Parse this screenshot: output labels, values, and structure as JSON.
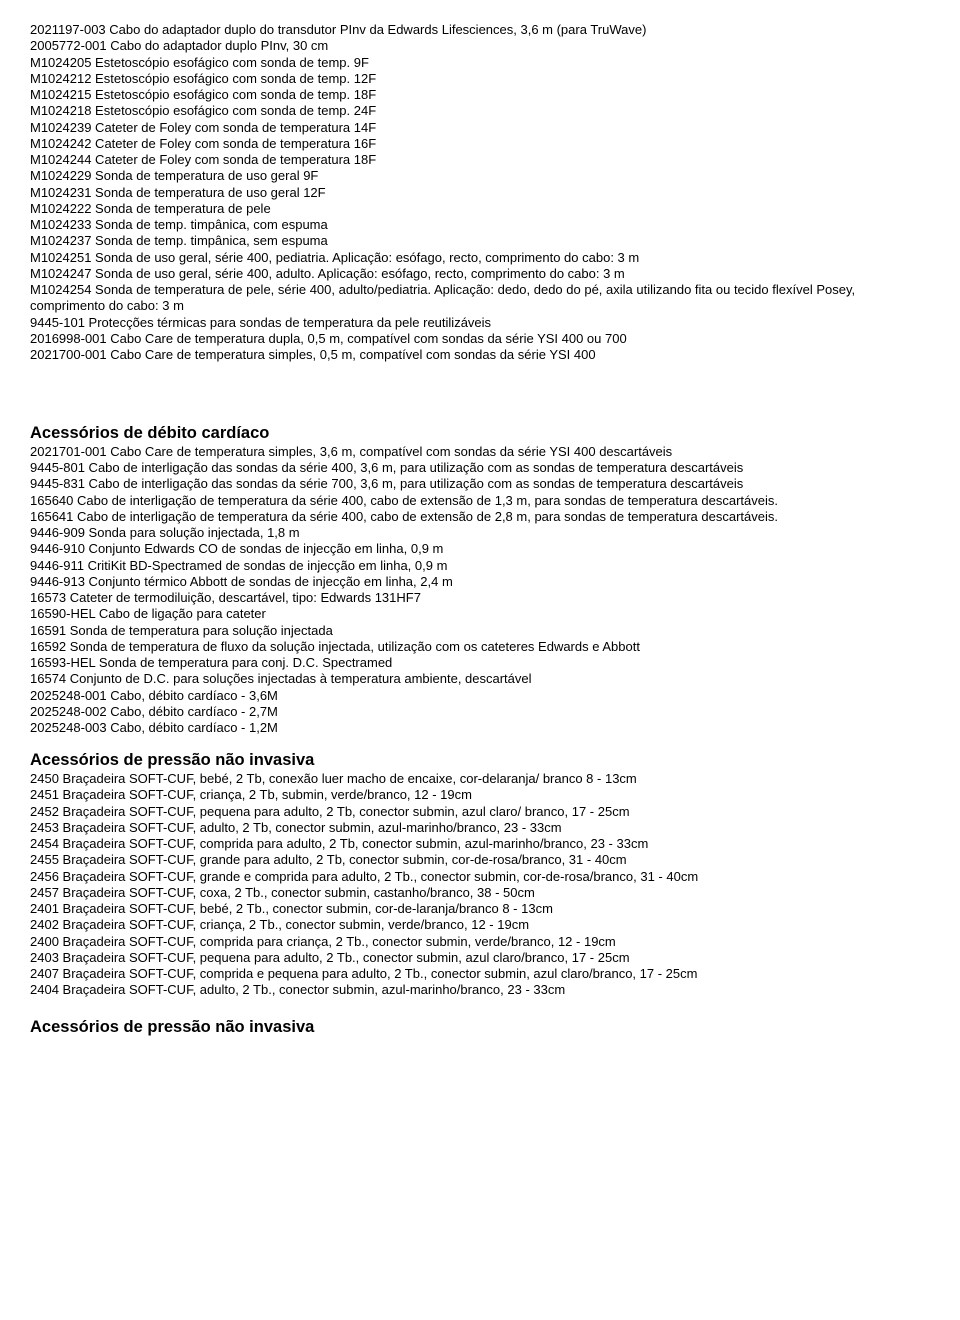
{
  "section1": {
    "lines": [
      "2021197-003 Cabo do adaptador duplo do transdutor PInv da Edwards Lifesciences, 3,6 m (para TruWave)",
      "2005772-001 Cabo do adaptador duplo PInv, 30 cm",
      "M1024205 Estetoscópio esofágico com sonda de temp. 9F",
      "M1024212 Estetoscópio esofágico com sonda de temp. 12F",
      "M1024215 Estetoscópio esofágico com sonda de temp. 18F",
      "M1024218 Estetoscópio esofágico com sonda de temp. 24F",
      "M1024239 Cateter de Foley com sonda de temperatura 14F",
      "M1024242 Cateter de Foley com sonda de temperatura 16F",
      "M1024244 Cateter de Foley com sonda de temperatura 18F",
      "M1024229 Sonda de temperatura de uso geral 9F",
      "M1024231 Sonda de temperatura de uso geral 12F",
      "M1024222 Sonda de temperatura de pele",
      "M1024233 Sonda de temp. timpânica, com espuma",
      "M1024237 Sonda de temp. timpânica, sem espuma",
      "M1024251 Sonda de uso geral, série 400, pediatria. Aplicação: esófago, recto, comprimento do cabo: 3 m",
      "M1024247 Sonda de uso geral, série 400, adulto. Aplicação: esófago, recto, comprimento do cabo: 3 m",
      "M1024254 Sonda de temperatura de pele, série 400, adulto/pediatria. Aplicação: dedo, dedo do pé, axila utilizando fita ou tecido flexível Posey, comprimento do cabo: 3 m",
      "9445-101 Protecções térmicas para sondas de temperatura da pele reutilizáveis",
      "2016998-001 Cabo Care de temperatura dupla, 0,5 m, compatível com sondas da série YSI 400 ou 700",
      "2021700-001 Cabo Care de temperatura simples, 0,5 m, compatível com sondas da série YSI 400"
    ]
  },
  "section2": {
    "heading": "Acessórios de débito cardíaco",
    "lines": [
      "2021701-001 Cabo Care de temperatura simples, 3,6 m, compatível com sondas da série YSI 400 descartáveis",
      "9445-801 Cabo de interligação das sondas da série 400, 3,6 m, para utilização com as sondas de temperatura descartáveis",
      "9445-831 Cabo de interligação das sondas da série 700, 3,6 m, para utilização com as sondas de temperatura descartáveis",
      "165640 Cabo de interligação de temperatura da série 400, cabo de extensão de 1,3 m, para sondas de temperatura descartáveis.",
      "165641 Cabo de interligação de temperatura da série 400, cabo de extensão de 2,8 m, para sondas de temperatura descartáveis.",
      "9446-909 Sonda para solução injectada, 1,8 m",
      "9446-910 Conjunto Edwards CO de sondas de injecção em linha, 0,9 m",
      "9446-911 CritiKit BD-Spectramed de sondas de injecção em linha, 0,9 m",
      "9446-913 Conjunto térmico Abbott de sondas de injecção em linha, 2,4 m",
      "16573 Cateter de termodiluição, descartável, tipo: Edwards 131HF7",
      "16590-HEL Cabo de ligação para cateter",
      "16591 Sonda de temperatura para solução injectada",
      "16592 Sonda de temperatura de fluxo da solução injectada, utilização com os cateteres Edwards e Abbott",
      "16593-HEL Sonda de temperatura para conj. D.C. Spectramed",
      "16574 Conjunto de D.C. para soluções injectadas à temperatura ambiente, descartável",
      "2025248-001 Cabo, débito cardíaco - 3,6M",
      "2025248-002 Cabo, débito cardíaco - 2,7M",
      "2025248-003 Cabo, débito cardíaco - 1,2M"
    ],
    "justify": [
      false,
      true,
      true,
      true,
      true,
      false,
      false,
      false,
      false,
      false,
      false,
      false,
      false,
      false,
      false,
      false,
      false,
      false
    ]
  },
  "section3": {
    "heading": "Acessórios de pressão não invasiva",
    "lines": [
      "2450 Braçadeira SOFT-CUF, bebé, 2 Tb, conexão luer macho de encaixe, cor-delaranja/ branco 8 - 13cm",
      "2451 Braçadeira SOFT-CUF, criança, 2 Tb, submin, verde/branco, 12 - 19cm",
      "2452 Braçadeira SOFT-CUF, pequena para adulto, 2 Tb, conector submin, azul claro/ branco, 17 - 25cm",
      "2453 Braçadeira SOFT-CUF, adulto, 2 Tb, conector submin, azul-marinho/branco, 23 - 33cm",
      "2454 Braçadeira SOFT-CUF, comprida para adulto, 2 Tb, conector submin, azul-marinho/branco, 23 - 33cm",
      "2455 Braçadeira SOFT-CUF, grande para adulto, 2 Tb, conector submin, cor-de-rosa/branco, 31 - 40cm",
      "2456 Braçadeira SOFT-CUF, grande e comprida para adulto, 2 Tb., conector submin, cor-de-rosa/branco, 31 - 40cm",
      "2457 Braçadeira SOFT-CUF, coxa, 2 Tb., conector submin, castanho/branco, 38 - 50cm",
      "2401 Braçadeira SOFT-CUF, bebé, 2 Tb., conector submin, cor-de-laranja/branco 8 - 13cm",
      "2402 Braçadeira SOFT-CUF, criança, 2 Tb., conector submin, verde/branco, 12 - 19cm",
      "2400 Braçadeira SOFT-CUF, comprida para criança, 2 Tb., conector submin, verde/branco, 12 - 19cm",
      "2403 Braçadeira SOFT-CUF, pequena para adulto, 2 Tb., conector submin, azul claro/branco, 17 - 25cm",
      "2407 Braçadeira SOFT-CUF, comprida e pequena para adulto, 2 Tb., conector submin, azul claro/branco, 17 - 25cm",
      "2404 Braçadeira SOFT-CUF, adulto, 2 Tb., conector submin, azul-marinho/branco, 23 - 33cm"
    ]
  },
  "section4": {
    "heading": "Acessórios de pressão não invasiva"
  }
}
